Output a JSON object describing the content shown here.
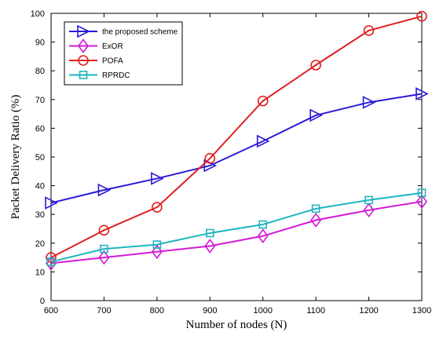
{
  "chart_data": {
    "type": "line",
    "xlabel": "Number of nodes (N)",
    "ylabel": "Packet Delivery Ratio (%)",
    "xlim": [
      600,
      1300
    ],
    "ylim": [
      0,
      100
    ],
    "xticks": [
      600,
      700,
      800,
      900,
      1000,
      1100,
      1200,
      1300
    ],
    "yticks": [
      0,
      10,
      20,
      30,
      40,
      50,
      60,
      70,
      80,
      90,
      100
    ],
    "legend_position": "top-left",
    "grid": false,
    "x": [
      600,
      700,
      800,
      900,
      1000,
      1100,
      1200,
      1300
    ],
    "series": [
      {
        "name": "the proposed scheme",
        "color": "#2a1ad6",
        "marker": "triangle-right",
        "values": [
          34,
          38.5,
          42.5,
          47,
          55.5,
          64.5,
          69,
          72
        ]
      },
      {
        "name": "ExOR",
        "color": "#d21ad6",
        "marker": "diamond",
        "values": [
          13,
          15,
          17,
          19,
          22.5,
          28,
          31.5,
          34.5
        ]
      },
      {
        "name": "POFA",
        "color": "#e02020",
        "marker": "circle",
        "values": [
          15,
          24.5,
          32.5,
          49.5,
          69.5,
          82,
          94,
          99
        ]
      },
      {
        "name": "RPRDC",
        "color": "#1fb5bf",
        "marker": "square",
        "values": [
          13.5,
          18,
          19.5,
          23.5,
          26.5,
          32,
          35,
          37.5
        ]
      }
    ]
  }
}
